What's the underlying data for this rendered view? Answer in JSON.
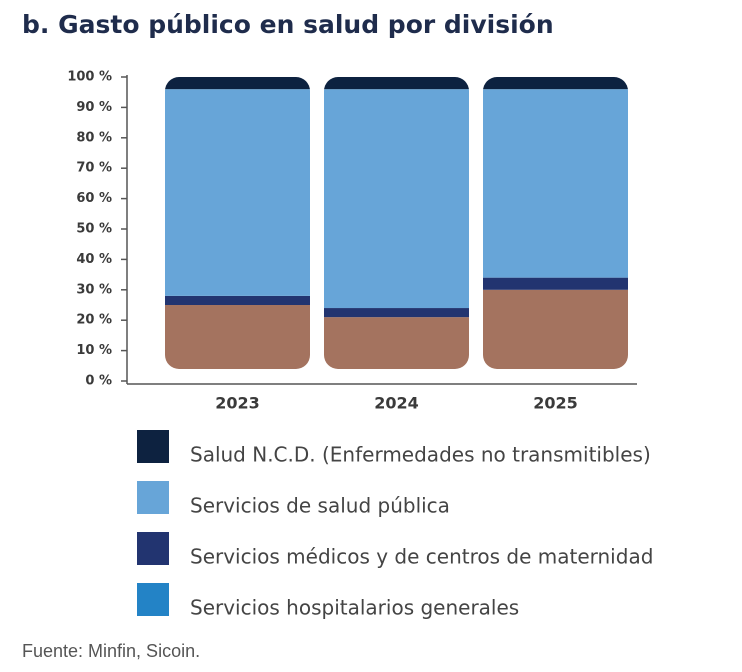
{
  "chart_data": {
    "type": "stacked_bar",
    "title": "b. Gasto público en salud por división",
    "source": "Fuente: Minfin, Sicoin.",
    "categories": [
      "2023",
      "2024",
      "2025"
    ],
    "series": [
      {
        "name": "Salud N.C.D. (Enfermedades no transmitibles)",
        "color": "#0d2240",
        "values": [
          4,
          4,
          4
        ]
      },
      {
        "name": "Servicios de salud pública",
        "color": "#67a5d8",
        "values": [
          68,
          72,
          62
        ]
      },
      {
        "name": "Servicios médicos y de centros de maternidad",
        "color": "#223470",
        "values": [
          3,
          3,
          4
        ]
      },
      {
        "name": "Servicios hospitalarios generales",
        "color": "#a4735f",
        "legend_color": "#2383c6",
        "values": [
          25,
          21,
          30
        ]
      }
    ],
    "ylim": [
      0,
      100
    ],
    "yticks": [
      {
        "value": 0,
        "label": "0 %"
      },
      {
        "value": 10,
        "label": "10 %"
      },
      {
        "value": 20,
        "label": "20 %"
      },
      {
        "value": 30,
        "label": "30 %"
      },
      {
        "value": 40,
        "label": "40 %"
      },
      {
        "value": 50,
        "label": "50 %"
      },
      {
        "value": 60,
        "label": "60 %"
      },
      {
        "value": 70,
        "label": "70 %"
      },
      {
        "value": 80,
        "label": "80 %"
      },
      {
        "value": 90,
        "label": "90 %"
      },
      {
        "value": 100,
        "label": "100 %"
      }
    ]
  }
}
